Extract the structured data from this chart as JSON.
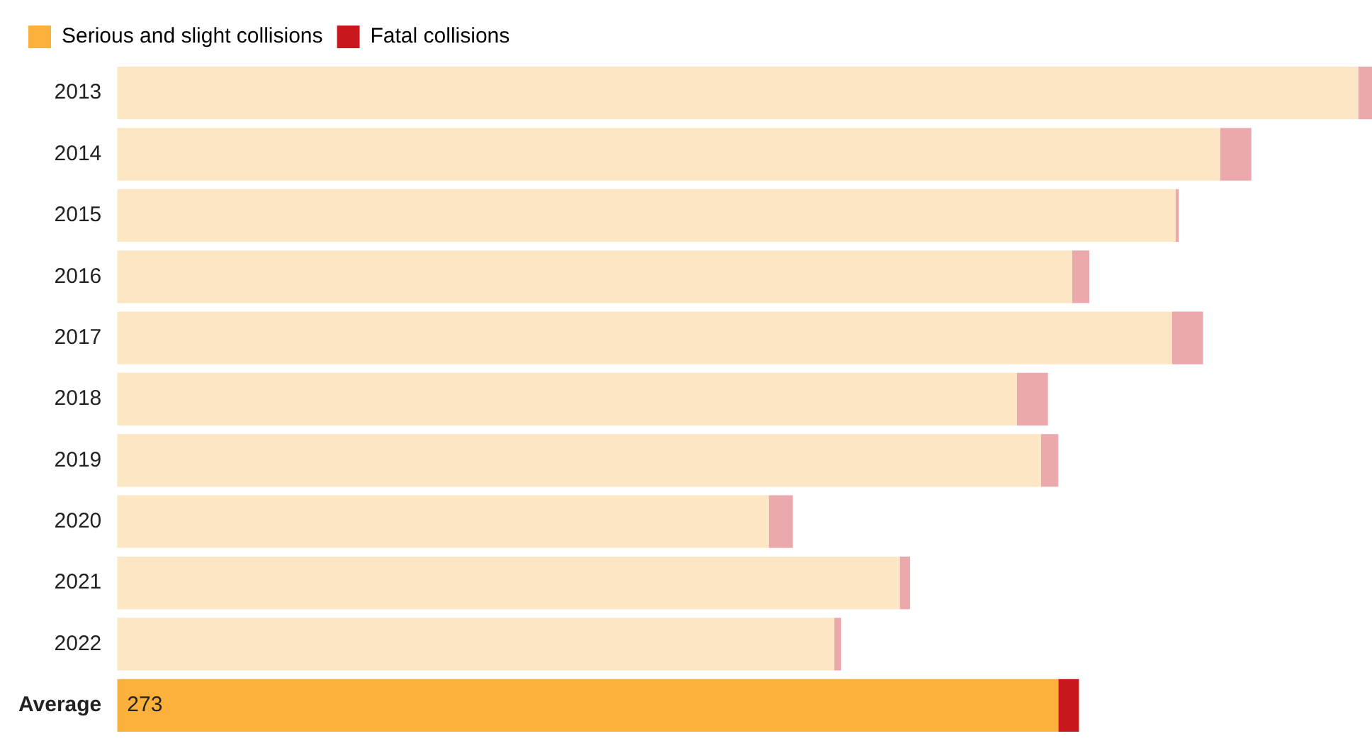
{
  "chart_data": {
    "type": "bar",
    "orientation": "horizontal",
    "stacked": true,
    "legend": "top left",
    "categories": [
      "2013",
      "2014",
      "2015",
      "2016",
      "2017",
      "2018",
      "2019",
      "2020",
      "2021",
      "2022",
      "Average"
    ],
    "series": [
      {
        "name": "Serious and slight collisions",
        "color": "#fbb13c",
        "colors": [
          "#fde6c3",
          "#fde6c3",
          "#fde6c3",
          "#fde6c3",
          "#fde6c3",
          "#fde6c3",
          "#fde6c3",
          "#fde6c3",
          "#fde6c3",
          "#fde6c3",
          "#fbb13c"
        ],
        "values": [
          360,
          320,
          307,
          277,
          306,
          261,
          268,
          189,
          227,
          208,
          273
        ],
        "value_labels": [
          null,
          null,
          null,
          null,
          null,
          null,
          null,
          null,
          null,
          null,
          "273"
        ]
      },
      {
        "name": "Fatal collisions",
        "color": "#c8181e",
        "colors": [
          "#eba9ad",
          "#eba9ad",
          "#eba9ad",
          "#eba9ad",
          "#eba9ad",
          "#eba9ad",
          "#eba9ad",
          "#eba9ad",
          "#eba9ad",
          "#eba9ad",
          "#c8181e"
        ],
        "values": [
          4,
          9,
          1,
          5,
          9,
          9,
          5,
          7,
          3,
          2,
          6
        ]
      }
    ]
  }
}
